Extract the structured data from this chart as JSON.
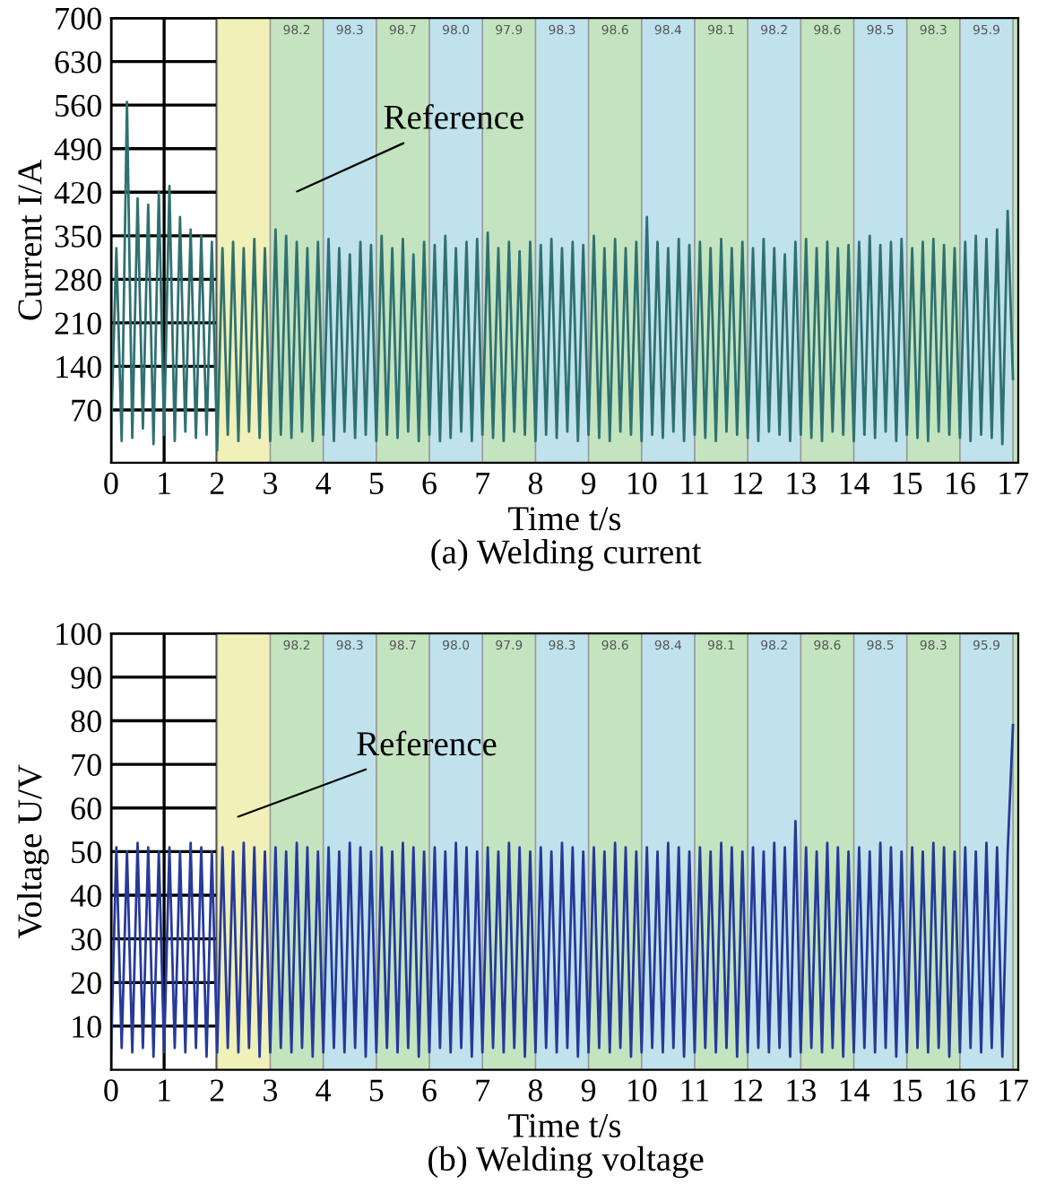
{
  "chart_data": [
    {
      "type": "line",
      "xlabel": "Time t/s",
      "ylabel": "Current I/A",
      "annotations": [
        "Reference",
        "(a) Welding current"
      ],
      "xlim": [
        0,
        17.1
      ],
      "xticks": [
        0,
        1,
        2,
        3,
        4,
        5,
        6,
        7,
        8,
        9,
        10,
        11,
        12,
        13,
        14,
        15,
        16,
        17
      ],
      "ylim": [
        -15,
        700
      ],
      "yticks": [
        70,
        140,
        210,
        280,
        350,
        420,
        490,
        560,
        630,
        700
      ],
      "grid": true,
      "bands": [
        {
          "axis": "x",
          "from": 2,
          "to": 3,
          "label": null,
          "color": "#f0f0b8"
        },
        {
          "axis": "x",
          "from": 3,
          "to": 4,
          "label": "98.2",
          "color": "#c4e4c0"
        },
        {
          "axis": "x",
          "from": 4,
          "to": 5,
          "label": "98.3",
          "color": "#c0e2ec"
        },
        {
          "axis": "x",
          "from": 5,
          "to": 6,
          "label": "98.7",
          "color": "#c4e4c0"
        },
        {
          "axis": "x",
          "from": 6,
          "to": 7,
          "label": "98.0",
          "color": "#c0e2ec"
        },
        {
          "axis": "x",
          "from": 7,
          "to": 8,
          "label": "97.9",
          "color": "#c4e4c0"
        },
        {
          "axis": "x",
          "from": 8,
          "to": 9,
          "label": "98.3",
          "color": "#c0e2ec"
        },
        {
          "axis": "x",
          "from": 9,
          "to": 10,
          "label": "98.6",
          "color": "#c4e4c0"
        },
        {
          "axis": "x",
          "from": 10,
          "to": 11,
          "label": "98.4",
          "color": "#c0e2ec"
        },
        {
          "axis": "x",
          "from": 11,
          "to": 12,
          "label": "98.1",
          "color": "#c4e4c0"
        },
        {
          "axis": "x",
          "from": 12,
          "to": 13,
          "label": "98.2",
          "color": "#c0e2ec"
        },
        {
          "axis": "x",
          "from": 13,
          "to": 14,
          "label": "98.6",
          "color": "#c4e4c0"
        },
        {
          "axis": "x",
          "from": 14,
          "to": 15,
          "label": "98.5",
          "color": "#c0e2ec"
        },
        {
          "axis": "x",
          "from": 15,
          "to": 16,
          "label": "98.3",
          "color": "#c4e4c0"
        },
        {
          "axis": "x",
          "from": 16,
          "to": 17,
          "label": "95.9",
          "color": "#c0e2ec"
        },
        {
          "axis": "x",
          "from": 17,
          "to": 17.1,
          "label": null,
          "color": "#c4e4c0"
        }
      ],
      "x": [
        0,
        0.1,
        0.2,
        0.3,
        0.4,
        0.5,
        0.6,
        0.7,
        0.8,
        0.9,
        1,
        1.1,
        1.2,
        1.3,
        1.4,
        1.5,
        1.6,
        1.7,
        1.8,
        1.9,
        2,
        2.1,
        2.2,
        2.3,
        2.4,
        2.5,
        2.6,
        2.7,
        2.8,
        2.9,
        3,
        3.1,
        3.2,
        3.3,
        3.4,
        3.5,
        3.6,
        3.7,
        3.8,
        3.9,
        4,
        4.1,
        4.2,
        4.3,
        4.4,
        4.5,
        4.6,
        4.7,
        4.8,
        4.9,
        5,
        5.1,
        5.2,
        5.3,
        5.4,
        5.5,
        5.6,
        5.7,
        5.8,
        5.9,
        6,
        6.1,
        6.2,
        6.3,
        6.4,
        6.5,
        6.6,
        6.7,
        6.8,
        6.9,
        7,
        7.1,
        7.2,
        7.3,
        7.4,
        7.5,
        7.6,
        7.7,
        7.8,
        7.9,
        8,
        8.1,
        8.2,
        8.3,
        8.4,
        8.5,
        8.6,
        8.7,
        8.8,
        8.9,
        9,
        9.1,
        9.2,
        9.3,
        9.4,
        9.5,
        9.6,
        9.7,
        9.8,
        9.9,
        10,
        10.1,
        10.2,
        10.3,
        10.4,
        10.5,
        10.6,
        10.7,
        10.8,
        10.9,
        11,
        11.1,
        11.2,
        11.3,
        11.4,
        11.5,
        11.6,
        11.7,
        11.8,
        11.9,
        12,
        12.1,
        12.2,
        12.3,
        12.4,
        12.5,
        12.6,
        12.7,
        12.8,
        12.9,
        13,
        13.1,
        13.2,
        13.3,
        13.4,
        13.5,
        13.6,
        13.7,
        13.8,
        13.9,
        14,
        14.1,
        14.2,
        14.3,
        14.4,
        14.5,
        14.6,
        14.7,
        14.8,
        14.9,
        15,
        15.1,
        15.2,
        15.3,
        15.4,
        15.5,
        15.6,
        15.7,
        15.8,
        15.9,
        16,
        16.1,
        16.2,
        16.3,
        16.4,
        16.5,
        16.6,
        16.7,
        16.8,
        16.9,
        17
      ],
      "series": [
        {
          "color": "#2f7170",
          "values": [
            30,
            330,
            20,
            565,
            25,
            410,
            40,
            400,
            15,
            420,
            30,
            430,
            20,
            380,
            35,
            360,
            25,
            350,
            30,
            340,
            5,
            330,
            30,
            340,
            20,
            330,
            35,
            345,
            25,
            330,
            20,
            360,
            30,
            350,
            25,
            340,
            35,
            330,
            20,
            340,
            30,
            345,
            20,
            330,
            35,
            320,
            25,
            340,
            30,
            335,
            20,
            350,
            30,
            330,
            25,
            345,
            35,
            320,
            20,
            340,
            30,
            335,
            20,
            350,
            25,
            330,
            35,
            340,
            20,
            345,
            30,
            355,
            25,
            330,
            20,
            340,
            35,
            325,
            30,
            340,
            20,
            335,
            30,
            345,
            25,
            330,
            35,
            340,
            20,
            335,
            30,
            350,
            25,
            330,
            20,
            345,
            35,
            330,
            30,
            340,
            20,
            380,
            30,
            340,
            25,
            330,
            35,
            345,
            20,
            335,
            30,
            340,
            25,
            330,
            20,
            345,
            35,
            330,
            30,
            340,
            25,
            330,
            20,
            345,
            35,
            330,
            30,
            320,
            20,
            340,
            30,
            345,
            25,
            330,
            20,
            340,
            35,
            330,
            30,
            335,
            20,
            340,
            30,
            350,
            25,
            335,
            35,
            340,
            20,
            345,
            30,
            330,
            25,
            340,
            20,
            345,
            35,
            335,
            30,
            330,
            25,
            340,
            20,
            350,
            30,
            345,
            25,
            360,
            15,
            390,
            120
          ]
        }
      ]
    },
    {
      "type": "line",
      "xlabel": "Time t/s",
      "ylabel": "Voltage U/V",
      "annotations": [
        "Reference",
        "(b) Welding voltage"
      ],
      "xlim": [
        0,
        17.1
      ],
      "xticks": [
        0,
        1,
        2,
        3,
        4,
        5,
        6,
        7,
        8,
        9,
        10,
        11,
        12,
        13,
        14,
        15,
        16,
        17
      ],
      "ylim": [
        0,
        100
      ],
      "yticks": [
        10,
        20,
        30,
        40,
        50,
        60,
        70,
        80,
        90,
        100
      ],
      "grid": true,
      "bands": [
        {
          "axis": "x",
          "from": 2,
          "to": 3,
          "label": null,
          "color": "#f0f0b8"
        },
        {
          "axis": "x",
          "from": 3,
          "to": 4,
          "label": "98.2",
          "color": "#c4e4c0"
        },
        {
          "axis": "x",
          "from": 4,
          "to": 5,
          "label": "98.3",
          "color": "#c0e2ec"
        },
        {
          "axis": "x",
          "from": 5,
          "to": 6,
          "label": "98.7",
          "color": "#c4e4c0"
        },
        {
          "axis": "x",
          "from": 6,
          "to": 7,
          "label": "98.0",
          "color": "#c0e2ec"
        },
        {
          "axis": "x",
          "from": 7,
          "to": 8,
          "label": "97.9",
          "color": "#c4e4c0"
        },
        {
          "axis": "x",
          "from": 8,
          "to": 9,
          "label": "98.3",
          "color": "#c0e2ec"
        },
        {
          "axis": "x",
          "from": 9,
          "to": 10,
          "label": "98.6",
          "color": "#c4e4c0"
        },
        {
          "axis": "x",
          "from": 10,
          "to": 11,
          "label": "98.4",
          "color": "#c0e2ec"
        },
        {
          "axis": "x",
          "from": 11,
          "to": 12,
          "label": "98.1",
          "color": "#c4e4c0"
        },
        {
          "axis": "x",
          "from": 12,
          "to": 13,
          "label": "98.2",
          "color": "#c0e2ec"
        },
        {
          "axis": "x",
          "from": 13,
          "to": 14,
          "label": "98.6",
          "color": "#c4e4c0"
        },
        {
          "axis": "x",
          "from": 14,
          "to": 15,
          "label": "98.5",
          "color": "#c0e2ec"
        },
        {
          "axis": "x",
          "from": 15,
          "to": 16,
          "label": "98.3",
          "color": "#c4e4c0"
        },
        {
          "axis": "x",
          "from": 16,
          "to": 17,
          "label": "95.9",
          "color": "#c0e2ec"
        },
        {
          "axis": "x",
          "from": 17,
          "to": 17.1,
          "label": null,
          "color": "#c4e4c0"
        }
      ],
      "x": [
        0,
        0.1,
        0.2,
        0.3,
        0.4,
        0.5,
        0.6,
        0.7,
        0.8,
        0.9,
        1,
        1.1,
        1.2,
        1.3,
        1.4,
        1.5,
        1.6,
        1.7,
        1.8,
        1.9,
        2,
        2.1,
        2.2,
        2.3,
        2.4,
        2.5,
        2.6,
        2.7,
        2.8,
        2.9,
        3,
        3.1,
        3.2,
        3.3,
        3.4,
        3.5,
        3.6,
        3.7,
        3.8,
        3.9,
        4,
        4.1,
        4.2,
        4.3,
        4.4,
        4.5,
        4.6,
        4.7,
        4.8,
        4.9,
        5,
        5.1,
        5.2,
        5.3,
        5.4,
        5.5,
        5.6,
        5.7,
        5.8,
        5.9,
        6,
        6.1,
        6.2,
        6.3,
        6.4,
        6.5,
        6.6,
        6.7,
        6.8,
        6.9,
        7,
        7.1,
        7.2,
        7.3,
        7.4,
        7.5,
        7.6,
        7.7,
        7.8,
        7.9,
        8,
        8.1,
        8.2,
        8.3,
        8.4,
        8.5,
        8.6,
        8.7,
        8.8,
        8.9,
        9,
        9.1,
        9.2,
        9.3,
        9.4,
        9.5,
        9.6,
        9.7,
        9.8,
        9.9,
        10,
        10.1,
        10.2,
        10.3,
        10.4,
        10.5,
        10.6,
        10.7,
        10.8,
        10.9,
        11,
        11.1,
        11.2,
        11.3,
        11.4,
        11.5,
        11.6,
        11.7,
        11.8,
        11.9,
        12,
        12.1,
        12.2,
        12.3,
        12.4,
        12.5,
        12.6,
        12.7,
        12.8,
        12.9,
        13,
        13.1,
        13.2,
        13.3,
        13.4,
        13.5,
        13.6,
        13.7,
        13.8,
        13.9,
        14,
        14.1,
        14.2,
        14.3,
        14.4,
        14.5,
        14.6,
        14.7,
        14.8,
        14.9,
        15,
        15.1,
        15.2,
        15.3,
        15.4,
        15.5,
        15.6,
        15.7,
        15.8,
        15.9,
        16,
        16.1,
        16.2,
        16.3,
        16.4,
        16.5,
        16.6,
        16.7,
        16.8,
        16.9,
        17
      ],
      "series": [
        {
          "color": "#263a98",
          "values": [
            4,
            51,
            5,
            50,
            4,
            52,
            5,
            51,
            3,
            50,
            4,
            51,
            5,
            50,
            4,
            52,
            5,
            51,
            3,
            50,
            4,
            51,
            5,
            50,
            4,
            52,
            5,
            51,
            3,
            50,
            4,
            51,
            5,
            50,
            4,
            52,
            5,
            51,
            3,
            50,
            4,
            51,
            5,
            50,
            4,
            52,
            5,
            51,
            3,
            50,
            4,
            51,
            5,
            50,
            4,
            52,
            5,
            51,
            3,
            50,
            4,
            51,
            5,
            50,
            4,
            52,
            5,
            51,
            3,
            50,
            4,
            51,
            5,
            50,
            4,
            52,
            5,
            51,
            3,
            50,
            4,
            51,
            5,
            50,
            4,
            52,
            5,
            51,
            3,
            50,
            4,
            51,
            5,
            50,
            4,
            52,
            5,
            51,
            3,
            50,
            4,
            51,
            5,
            50,
            4,
            52,
            5,
            51,
            3,
            50,
            4,
            51,
            5,
            50,
            4,
            52,
            5,
            51,
            3,
            50,
            4,
            51,
            5,
            50,
            4,
            52,
            5,
            51,
            3,
            57,
            4,
            51,
            5,
            50,
            4,
            52,
            5,
            51,
            3,
            50,
            4,
            51,
            5,
            50,
            4,
            52,
            5,
            51,
            3,
            50,
            4,
            51,
            5,
            50,
            4,
            52,
            5,
            51,
            3,
            50,
            4,
            51,
            5,
            50,
            4,
            52,
            5,
            51,
            3,
            50,
            79
          ]
        }
      ]
    }
  ]
}
